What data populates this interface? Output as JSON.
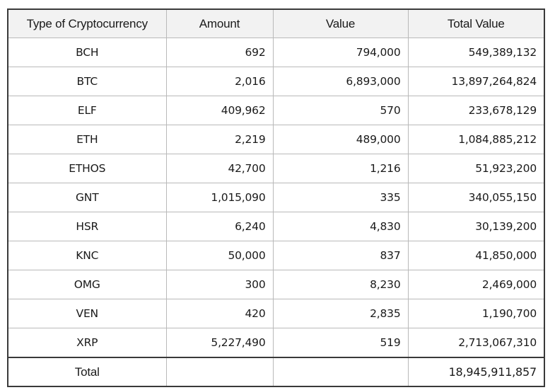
{
  "table": {
    "headers": [
      "Type of Cryptocurrency",
      "Amount",
      "Value",
      "Total  Value"
    ],
    "rows": [
      {
        "type": "BCH",
        "amount": "692",
        "value": "794,000",
        "total": "549,389,132"
      },
      {
        "type": "BTC",
        "amount": "2,016",
        "value": "6,893,000",
        "total": "13,897,264,824"
      },
      {
        "type": "ELF",
        "amount": "409,962",
        "value": "570",
        "total": "233,678,129"
      },
      {
        "type": "ETH",
        "amount": "2,219",
        "value": "489,000",
        "total": "1,084,885,212"
      },
      {
        "type": "ETHOS",
        "amount": "42,700",
        "value": "1,216",
        "total": "51,923,200"
      },
      {
        "type": "GNT",
        "amount": "1,015,090",
        "value": "335",
        "total": "340,055,150"
      },
      {
        "type": "HSR",
        "amount": "6,240",
        "value": "4,830",
        "total": "30,139,200"
      },
      {
        "type": "KNC",
        "amount": "50,000",
        "value": "837",
        "total": "41,850,000"
      },
      {
        "type": "OMG",
        "amount": "300",
        "value": "8,230",
        "total": "2,469,000"
      },
      {
        "type": "VEN",
        "amount": "420",
        "value": "2,835",
        "total": "1,190,700"
      },
      {
        "type": "XRP",
        "amount": "5,227,490",
        "value": "519",
        "total": "2,713,067,310"
      }
    ],
    "footer": {
      "label": "Total",
      "amount": "",
      "value": "",
      "total": "18,945,911,857"
    }
  }
}
